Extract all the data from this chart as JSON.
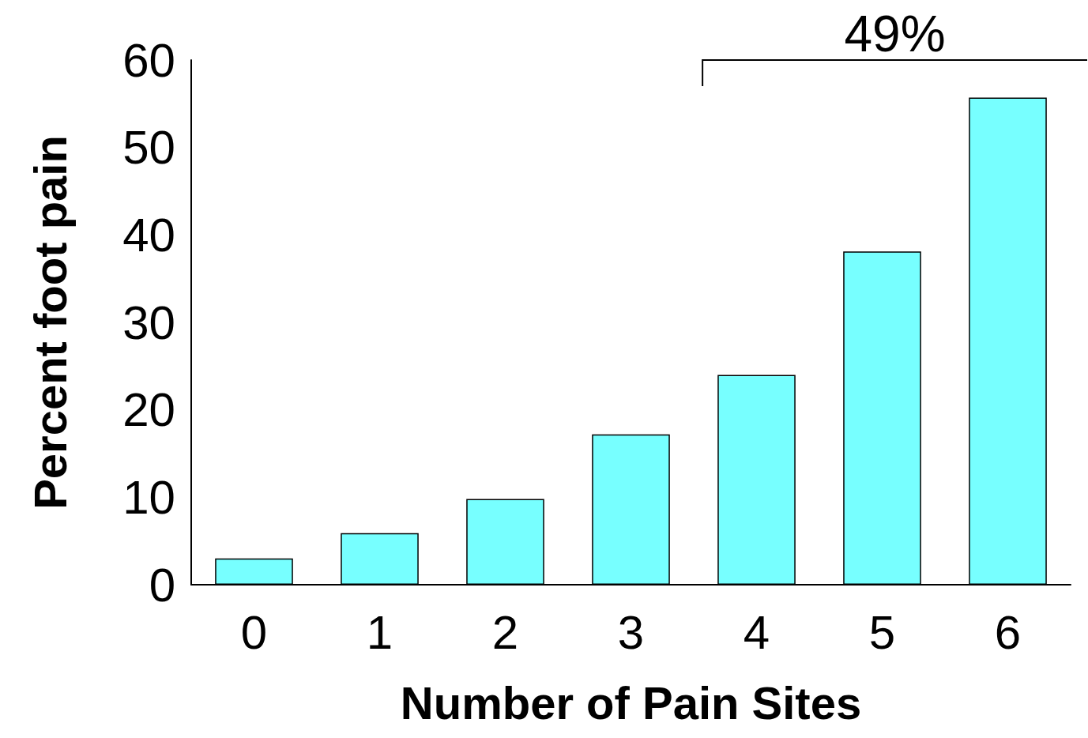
{
  "chart_data": {
    "type": "bar",
    "xlabel": "Number of Pain Sites",
    "ylabel": "Percent foot pain",
    "categories": [
      "0",
      "1",
      "2",
      "3",
      "4",
      "5",
      "6"
    ],
    "values": [
      3.0,
      5.9,
      9.8,
      17.2,
      24.0,
      38.1,
      55.7
    ],
    "color": "#77ffff",
    "ylim": [
      0,
      60
    ],
    "yticks": [
      0,
      10,
      20,
      30,
      40,
      50,
      60
    ],
    "grid": false,
    "annotations": [
      "49%"
    ]
  }
}
